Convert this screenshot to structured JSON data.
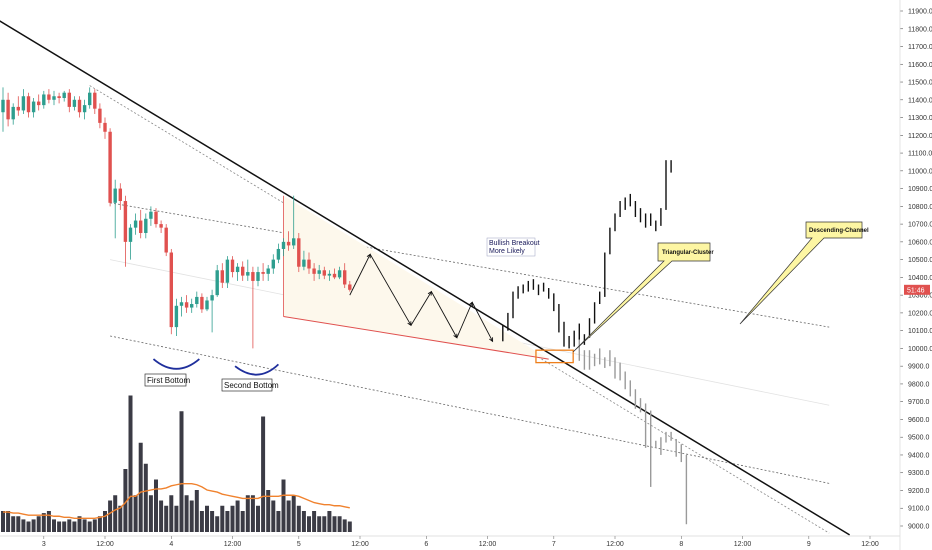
{
  "chart_data": {
    "type": "candlestick",
    "y_axis": {
      "side": "right",
      "ylim": [
        8950,
        11950
      ],
      "ticks": [
        9000,
        9100,
        9200,
        9300,
        9400,
        9500,
        9600,
        9700,
        9800,
        9900,
        10000,
        10100,
        10200,
        10300,
        10400,
        10500,
        10600,
        10700,
        10800,
        10900,
        11000,
        11100,
        11200,
        11300,
        11400,
        11500,
        11600,
        11700,
        11800,
        11900
      ],
      "tick_labels": [
        "9000.0",
        "9100.0",
        "9200.0",
        "9300.0",
        "9400.0",
        "9500.0",
        "9600.0",
        "9700.0",
        "9800.0",
        "9900.0",
        "10000.0",
        "10100.0",
        "10200.0",
        "10300.0",
        "10400.0",
        "10500.0",
        "10600.0",
        "10700.0",
        "10800.0",
        "10900.0",
        "11000.0",
        "11100.0",
        "11200.0",
        "11300.0",
        "11400.0",
        "11500.0",
        "11600.0",
        "11700.0",
        "11800.0",
        "11900.0"
      ]
    },
    "x_axis": {
      "ticks": [
        {
          "label": "3",
          "bar": 8
        },
        {
          "label": "12:00",
          "bar": 20
        },
        {
          "label": "4",
          "bar": 33
        },
        {
          "label": "12:00",
          "bar": 45
        },
        {
          "label": "5",
          "bar": 58
        },
        {
          "label": "12:00",
          "bar": 70
        },
        {
          "label": "6",
          "bar": 83
        },
        {
          "label": "12:00",
          "bar": 95
        },
        {
          "label": "7",
          "bar": 108
        },
        {
          "label": "12:00",
          "bar": 120
        },
        {
          "label": "8",
          "bar": 133
        },
        {
          "label": "12:00",
          "bar": 145
        },
        {
          "label": "9",
          "bar": 158
        },
        {
          "label": "12:00",
          "bar": 170
        }
      ]
    },
    "current_price": {
      "label": "51:46",
      "value": 10330
    },
    "candles": [
      {
        "o": 11330,
        "h": 11470,
        "l": 11220,
        "c": 11400
      },
      {
        "o": 11400,
        "h": 11440,
        "l": 11250,
        "c": 11290
      },
      {
        "o": 11290,
        "h": 11380,
        "l": 11260,
        "c": 11360
      },
      {
        "o": 11360,
        "h": 11420,
        "l": 11310,
        "c": 11340
      },
      {
        "o": 11340,
        "h": 11460,
        "l": 11320,
        "c": 11420
      },
      {
        "o": 11420,
        "h": 11440,
        "l": 11300,
        "c": 11330
      },
      {
        "o": 11330,
        "h": 11410,
        "l": 11300,
        "c": 11390
      },
      {
        "o": 11390,
        "h": 11430,
        "l": 11340,
        "c": 11370
      },
      {
        "o": 11370,
        "h": 11450,
        "l": 11350,
        "c": 11430
      },
      {
        "o": 11430,
        "h": 11460,
        "l": 11380,
        "c": 11400
      },
      {
        "o": 11400,
        "h": 11450,
        "l": 11370,
        "c": 11420
      },
      {
        "o": 11420,
        "h": 11440,
        "l": 11380,
        "c": 11410
      },
      {
        "o": 11410,
        "h": 11450,
        "l": 11390,
        "c": 11440
      },
      {
        "o": 11440,
        "h": 11460,
        "l": 11330,
        "c": 11360
      },
      {
        "o": 11360,
        "h": 11420,
        "l": 11340,
        "c": 11400
      },
      {
        "o": 11400,
        "h": 11420,
        "l": 11300,
        "c": 11330
      },
      {
        "o": 11330,
        "h": 11400,
        "l": 11290,
        "c": 11370
      },
      {
        "o": 11370,
        "h": 11470,
        "l": 11350,
        "c": 11440
      },
      {
        "o": 11440,
        "h": 11460,
        "l": 11320,
        "c": 11350
      },
      {
        "o": 11350,
        "h": 11380,
        "l": 11240,
        "c": 11270
      },
      {
        "o": 11270,
        "h": 11300,
        "l": 11180,
        "c": 11220
      },
      {
        "o": 11220,
        "h": 11240,
        "l": 10800,
        "c": 10820
      },
      {
        "o": 10820,
        "h": 10950,
        "l": 10620,
        "c": 10900
      },
      {
        "o": 10900,
        "h": 10930,
        "l": 10780,
        "c": 10830
      },
      {
        "o": 10830,
        "h": 10860,
        "l": 10460,
        "c": 10600
      },
      {
        "o": 10600,
        "h": 10700,
        "l": 10500,
        "c": 10680
      },
      {
        "o": 10680,
        "h": 10760,
        "l": 10640,
        "c": 10720
      },
      {
        "o": 10720,
        "h": 10780,
        "l": 10620,
        "c": 10650
      },
      {
        "o": 10650,
        "h": 10760,
        "l": 10620,
        "c": 10730
      },
      {
        "o": 10730,
        "h": 10800,
        "l": 10690,
        "c": 10770
      },
      {
        "o": 10770,
        "h": 10790,
        "l": 10680,
        "c": 10700
      },
      {
        "o": 10700,
        "h": 10720,
        "l": 10650,
        "c": 10680
      },
      {
        "o": 10680,
        "h": 10700,
        "l": 10520,
        "c": 10540
      },
      {
        "o": 10540,
        "h": 10560,
        "l": 10080,
        "c": 10120
      },
      {
        "o": 10120,
        "h": 10280,
        "l": 10070,
        "c": 10240
      },
      {
        "o": 10240,
        "h": 10290,
        "l": 10180,
        "c": 10260
      },
      {
        "o": 10260,
        "h": 10300,
        "l": 10200,
        "c": 10230
      },
      {
        "o": 10230,
        "h": 10280,
        "l": 10200,
        "c": 10250
      },
      {
        "o": 10250,
        "h": 10320,
        "l": 10230,
        "c": 10290
      },
      {
        "o": 10290,
        "h": 10310,
        "l": 10200,
        "c": 10220
      },
      {
        "o": 10220,
        "h": 10290,
        "l": 10210,
        "c": 10270
      },
      {
        "o": 10270,
        "h": 10330,
        "l": 10090,
        "c": 10300
      },
      {
        "o": 10300,
        "h": 10470,
        "l": 10290,
        "c": 10440
      },
      {
        "o": 10440,
        "h": 10480,
        "l": 10340,
        "c": 10370
      },
      {
        "o": 10370,
        "h": 10520,
        "l": 10340,
        "c": 10500
      },
      {
        "o": 10500,
        "h": 10520,
        "l": 10400,
        "c": 10430
      },
      {
        "o": 10430,
        "h": 10480,
        "l": 10380,
        "c": 10460
      },
      {
        "o": 10460,
        "h": 10490,
        "l": 10380,
        "c": 10410
      },
      {
        "o": 10410,
        "h": 10500,
        "l": 10380,
        "c": 10430
      },
      {
        "o": 10430,
        "h": 10460,
        "l": 10000,
        "c": 10380
      },
      {
        "o": 10380,
        "h": 10460,
        "l": 10350,
        "c": 10430
      },
      {
        "o": 10430,
        "h": 10480,
        "l": 10380,
        "c": 10420
      },
      {
        "o": 10420,
        "h": 10470,
        "l": 10380,
        "c": 10450
      },
      {
        "o": 10450,
        "h": 10530,
        "l": 10420,
        "c": 10500
      },
      {
        "o": 10500,
        "h": 10590,
        "l": 10480,
        "c": 10560
      },
      {
        "o": 10560,
        "h": 10620,
        "l": 10520,
        "c": 10600
      },
      {
        "o": 10600,
        "h": 10660,
        "l": 10550,
        "c": 10580
      },
      {
        "o": 10580,
        "h": 10860,
        "l": 10560,
        "c": 10620
      },
      {
        "o": 10620,
        "h": 10650,
        "l": 10430,
        "c": 10460
      },
      {
        "o": 10460,
        "h": 10550,
        "l": 10440,
        "c": 10500
      },
      {
        "o": 10500,
        "h": 10540,
        "l": 10420,
        "c": 10450
      },
      {
        "o": 10450,
        "h": 10480,
        "l": 10380,
        "c": 10420
      },
      {
        "o": 10420,
        "h": 10470,
        "l": 10390,
        "c": 10440
      },
      {
        "o": 10440,
        "h": 10460,
        "l": 10390,
        "c": 10410
      },
      {
        "o": 10410,
        "h": 10440,
        "l": 10380,
        "c": 10420
      },
      {
        "o": 10420,
        "h": 10450,
        "l": 10390,
        "c": 10400
      },
      {
        "o": 10400,
        "h": 10460,
        "l": 10390,
        "c": 10440
      },
      {
        "o": 10440,
        "h": 10480,
        "l": 10340,
        "c": 10360
      },
      {
        "o": 10360,
        "h": 10380,
        "l": 10320,
        "c": 10330
      }
    ],
    "projection_bars": [
      {
        "bar": 113,
        "h": 10060,
        "l": 9930
      },
      {
        "bar": 114,
        "h": 9990,
        "l": 9880
      },
      {
        "bar": 115,
        "h": 9990,
        "l": 9880
      },
      {
        "bar": 116,
        "h": 9970,
        "l": 9900
      },
      {
        "bar": 117,
        "h": 10000,
        "l": 9910
      },
      {
        "bar": 118,
        "h": 9950,
        "l": 9890
      },
      {
        "bar": 119,
        "h": 9990,
        "l": 9900
      },
      {
        "bar": 120,
        "h": 9950,
        "l": 9830
      },
      {
        "bar": 121,
        "h": 9920,
        "l": 9820
      },
      {
        "bar": 122,
        "h": 9870,
        "l": 9770
      },
      {
        "bar": 123,
        "h": 9820,
        "l": 9730
      },
      {
        "bar": 124,
        "h": 9770,
        "l": 9660
      },
      {
        "bar": 125,
        "h": 9720,
        "l": 9640
      },
      {
        "bar": 126,
        "h": 9690,
        "l": 9440
      },
      {
        "bar": 127,
        "h": 9650,
        "l": 9220
      },
      {
        "bar": 128,
        "h": 9480,
        "l": 9440
      },
      {
        "bar": 129,
        "h": 9500,
        "l": 9400
      },
      {
        "bar": 130,
        "h": 9530,
        "l": 9470
      },
      {
        "bar": 131,
        "h": 9530,
        "l": 9480
      },
      {
        "bar": 132,
        "h": 9490,
        "l": 9390
      },
      {
        "bar": 133,
        "h": 9460,
        "l": 9360
      },
      {
        "bar": 134,
        "h": 9400,
        "l": 9010
      }
    ],
    "path_bars": [
      {
        "bar": 98,
        "h": 10130,
        "l": 10040
      },
      {
        "bar": 99,
        "h": 10200,
        "l": 10100
      },
      {
        "bar": 100,
        "h": 10320,
        "l": 10170
      },
      {
        "bar": 101,
        "h": 10350,
        "l": 10280
      },
      {
        "bar": 102,
        "h": 10360,
        "l": 10310
      },
      {
        "bar": 103,
        "h": 10380,
        "l": 10320
      },
      {
        "bar": 104,
        "h": 10390,
        "l": 10330
      },
      {
        "bar": 105,
        "h": 10360,
        "l": 10300
      },
      {
        "bar": 106,
        "h": 10370,
        "l": 10320
      },
      {
        "bar": 107,
        "h": 10340,
        "l": 10280
      },
      {
        "bar": 108,
        "h": 10310,
        "l": 10210
      },
      {
        "bar": 109,
        "h": 10250,
        "l": 10090
      },
      {
        "bar": 110,
        "h": 10150,
        "l": 10010
      },
      {
        "bar": 111,
        "h": 10070,
        "l": 10000
      },
      {
        "bar": 112,
        "h": 10100,
        "l": 10010
      },
      {
        "bar": 113,
        "h": 10140,
        "l": 10050
      },
      {
        "bar": 114,
        "h": 10080,
        "l": 10020
      },
      {
        "bar": 115,
        "h": 10170,
        "l": 10060
      },
      {
        "bar": 116,
        "h": 10260,
        "l": 10140
      },
      {
        "bar": 117,
        "h": 10320,
        "l": 10250
      },
      {
        "bar": 118,
        "h": 10540,
        "l": 10290
      },
      {
        "bar": 119,
        "h": 10680,
        "l": 10530
      },
      {
        "bar": 120,
        "h": 10760,
        "l": 10660
      },
      {
        "bar": 121,
        "h": 10830,
        "l": 10740
      },
      {
        "bar": 122,
        "h": 10850,
        "l": 10780
      },
      {
        "bar": 123,
        "h": 10870,
        "l": 10800
      },
      {
        "bar": 124,
        "h": 10830,
        "l": 10740
      },
      {
        "bar": 125,
        "h": 10790,
        "l": 10710
      },
      {
        "bar": 126,
        "h": 10760,
        "l": 10680
      },
      {
        "bar": 127,
        "h": 10760,
        "l": 10690
      },
      {
        "bar": 128,
        "h": 10720,
        "l": 10660
      },
      {
        "bar": 129,
        "h": 10790,
        "l": 10690
      },
      {
        "bar": 130,
        "h": 11060,
        "l": 10780
      },
      {
        "bar": 131,
        "h": 11060,
        "l": 10990
      }
    ],
    "volume": [
      2,
      2,
      1.5,
      1.5,
      1.2,
      1,
      1.2,
      1.5,
      1.8,
      2,
      1.2,
      1,
      1,
      1.2,
      1,
      1.5,
      1.2,
      1,
      1.2,
      1.5,
      2,
      3,
      3.5,
      2.5,
      6,
      13,
      3.5,
      8.5,
      6.5,
      3.5,
      5,
      3,
      2.5,
      3.5,
      2.5,
      11.5,
      3.5,
      3,
      4,
      2,
      2.5,
      2,
      1.5,
      2.5,
      2,
      2.5,
      3,
      2,
      3.5,
      3.5,
      2.5,
      11,
      4,
      3,
      2,
      5,
      3,
      3.5,
      2.5,
      2,
      1.5,
      2,
      1.5,
      1.5,
      2,
      1.5,
      1.5,
      1.2,
      1
    ],
    "volume_ma": [
      1.9,
      1.9,
      1.8,
      1.8,
      1.7,
      1.6,
      1.6,
      1.6,
      1.6,
      1.6,
      1.5,
      1.5,
      1.4,
      1.4,
      1.3,
      1.3,
      1.3,
      1.3,
      1.3,
      1.4,
      1.5,
      1.8,
      2.1,
      2.3,
      2.8,
      3.4,
      3.4,
      3.8,
      3.9,
      4.0,
      4.1,
      4.1,
      4.2,
      4.4,
      4.5,
      4.6,
      4.6,
      4.6,
      4.5,
      4.3,
      4.0,
      3.9,
      3.8,
      3.6,
      3.5,
      3.4,
      3.3,
      3.2,
      3.2,
      3.2,
      3.2,
      3.4,
      3.4,
      3.4,
      3.4,
      3.5,
      3.5,
      3.5,
      3.4,
      3.2,
      3.0,
      2.8,
      2.7,
      2.6,
      2.6,
      2.5,
      2.5,
      2.4,
      2.3
    ],
    "annotations": {
      "first_bottom": "First Bottom",
      "second_bottom": "Second Bottom",
      "bullish_line1": "Bullish Breakout",
      "bullish_line2": "More Likely",
      "triangular_cluster": "Triangular-Cluster",
      "descending_channel": "Descending-Channel"
    },
    "colors": {
      "bull": "#2e9e8f",
      "bear": "#e0514f",
      "volume": "#3b3b45",
      "volume_ma": "#f0822e",
      "trendline": "#111111",
      "projection": "#9a9a9a",
      "path": "#111111",
      "arc": "#1f2f9c",
      "box": "#ee7f1b",
      "callout_fill": "#fdf6a3",
      "price_tag": "#e0514f"
    }
  }
}
